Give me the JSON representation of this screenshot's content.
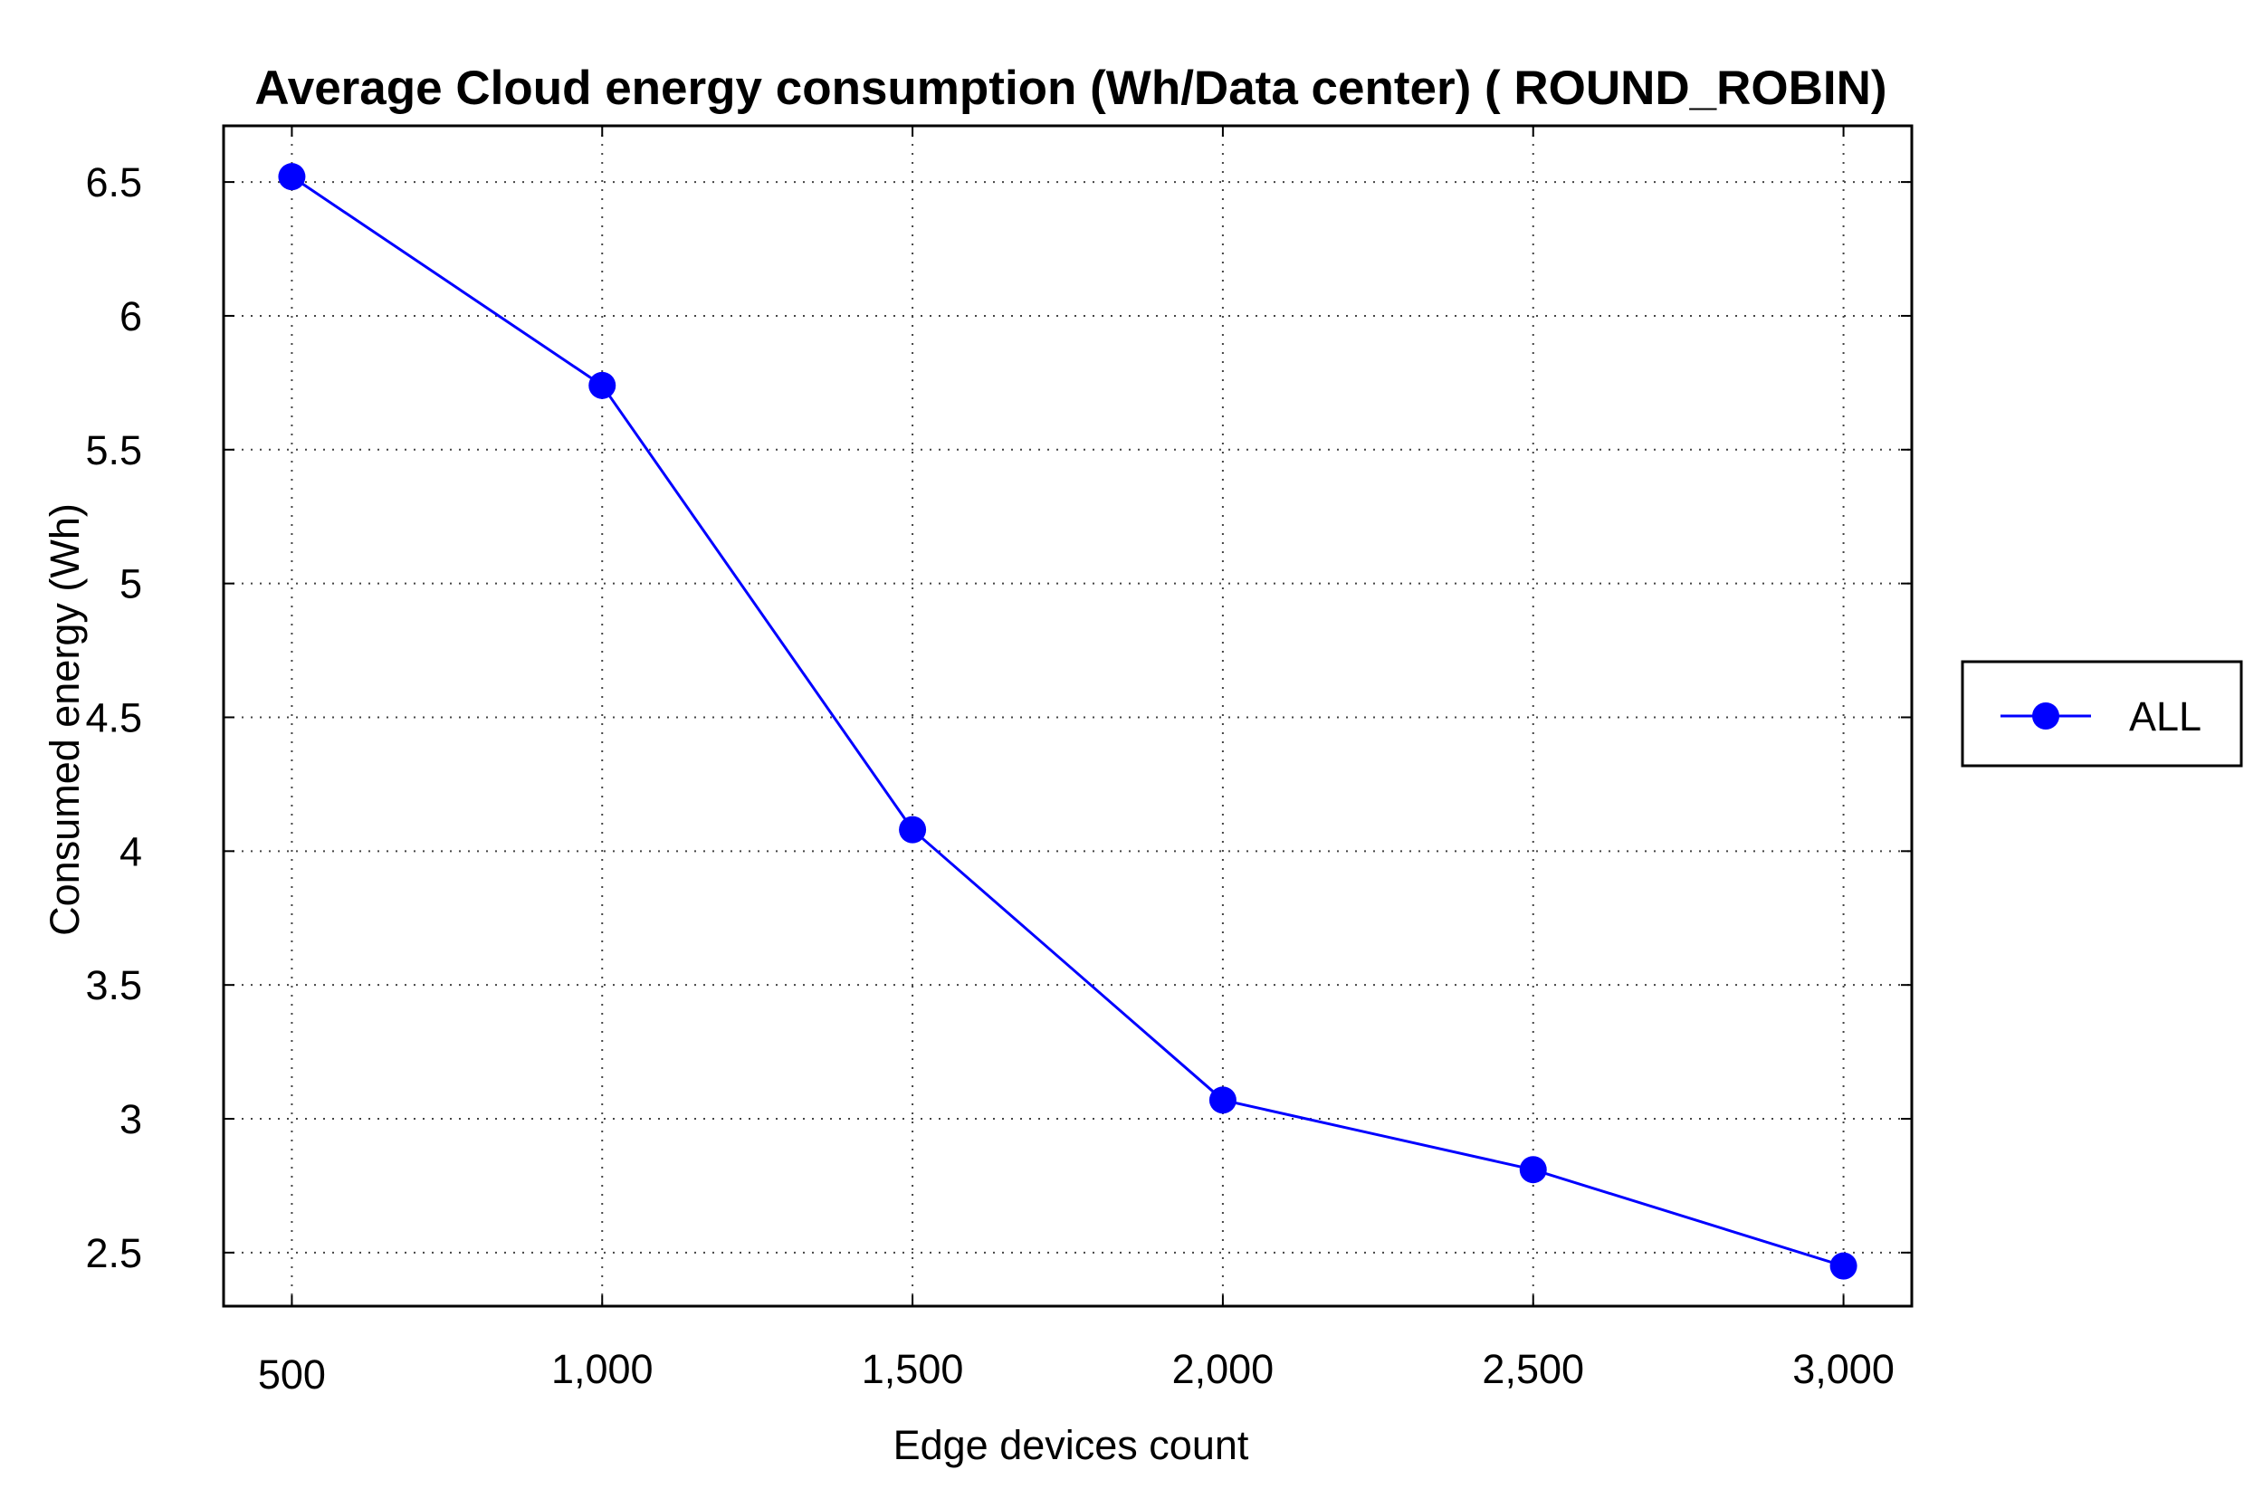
{
  "chart_data": {
    "type": "line",
    "title": "Average Cloud energy consumption (Wh/Data center) ( ROUND_ROBIN)",
    "xlabel": "Edge devices count",
    "ylabel": "Consumed energy (Wh)",
    "x": [
      500,
      1000,
      1500,
      2000,
      2500,
      3000
    ],
    "x_tick_labels": [
      "500",
      "1,000",
      "1,500",
      "2,000",
      "2,500",
      "3,000"
    ],
    "y_ticks": [
      2.5,
      3,
      3.5,
      4,
      4.5,
      5,
      5.5,
      6,
      6.5
    ],
    "y_tick_labels": [
      "2.5",
      "3",
      "3.5",
      "4",
      "4.5",
      "5",
      "5.5",
      "6",
      "6.5"
    ],
    "xlim": [
      390,
      3110
    ],
    "ylim": [
      2.3,
      6.71
    ],
    "grid": true,
    "legend_position": "right",
    "series": [
      {
        "name": "ALL",
        "color": "#0000ff",
        "marker": "circle",
        "values": [
          6.52,
          5.74,
          4.08,
          3.07,
          2.81,
          2.45
        ]
      }
    ]
  }
}
